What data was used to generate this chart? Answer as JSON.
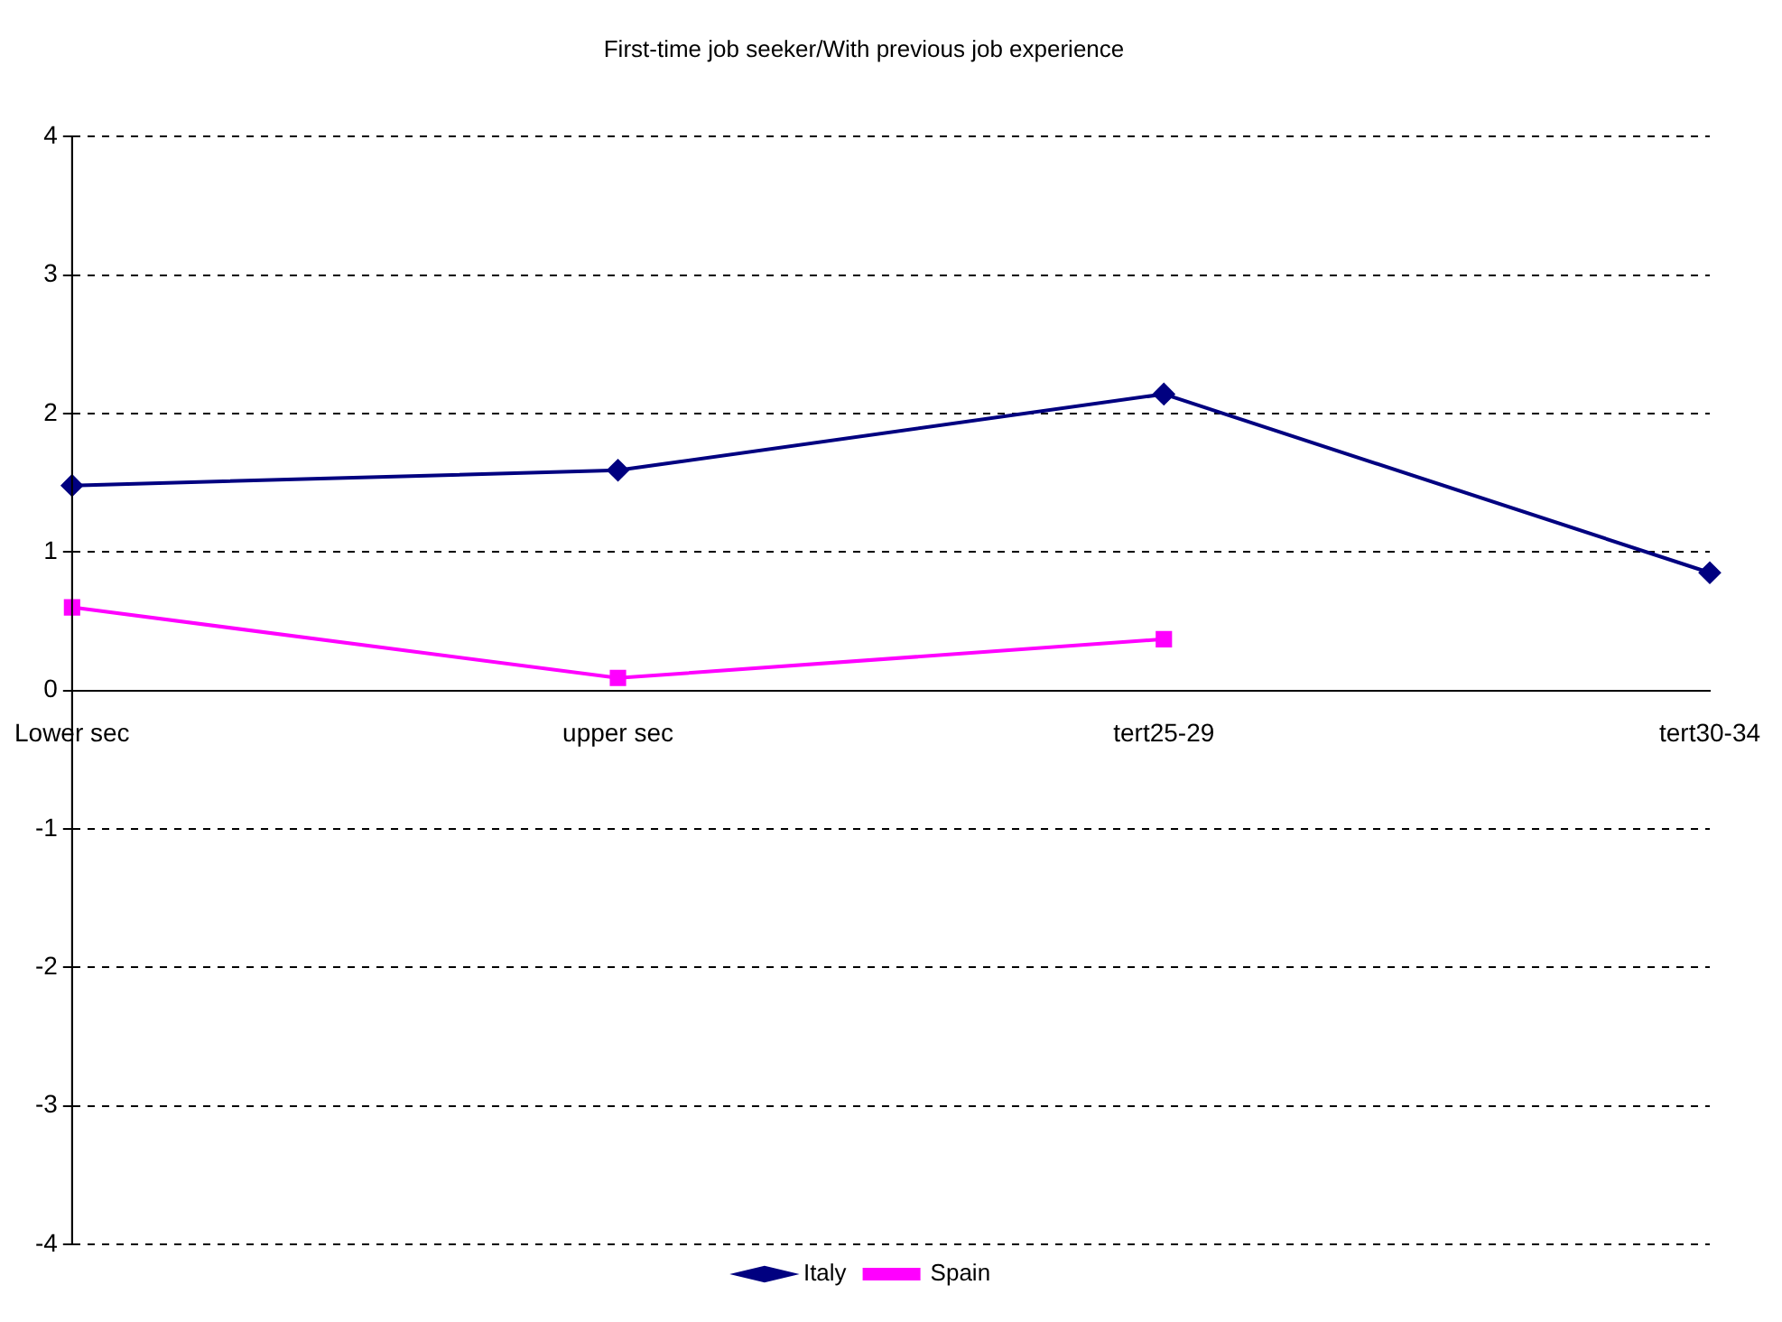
{
  "chart_data": {
    "type": "line",
    "title": "First-time job seeker/With previous job experience",
    "categories": [
      "Lower sec",
      "upper sec",
      "tert25-29",
      "tert30-34"
    ],
    "series": [
      {
        "name": "Italy",
        "color": "#000080",
        "values": [
          1.48,
          1.59,
          2.14,
          0.85
        ],
        "marker": "diamond"
      },
      {
        "name": "Spain",
        "color": "#ff00ff",
        "values": [
          0.6,
          0.09,
          0.37,
          null
        ],
        "marker": "square"
      }
    ],
    "ylim": [
      -4,
      4
    ],
    "yticks": [
      -4,
      -3,
      -2,
      -1,
      0,
      1,
      2,
      3,
      4
    ],
    "grid": "y",
    "legend": "bottom",
    "line_style": "solid"
  }
}
